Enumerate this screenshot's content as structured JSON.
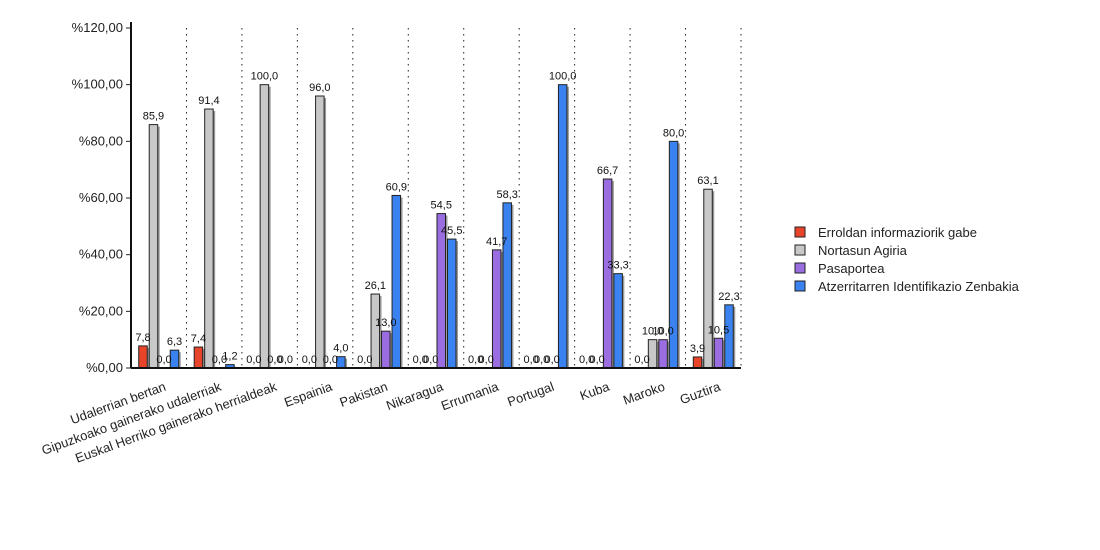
{
  "chart_data": {
    "type": "bar",
    "categories": [
      "Udalerrian bertan",
      "Gipuzkoako gainerako udalerriak",
      "Euskal Herriko gainerako herrialdeak",
      "Espainia",
      "Pakistan",
      "Nikaragua",
      "Errumania",
      "Portugal",
      "Kuba",
      "Maroko",
      "Guztira"
    ],
    "series": [
      {
        "name": "Erroldan informaziorik gabe",
        "color": "#e8442a",
        "values": [
          7.8,
          7.4,
          0.0,
          0.0,
          0.0,
          0.0,
          0.0,
          0.0,
          0.0,
          0.0,
          3.9
        ],
        "labels": [
          "7,8",
          "7,4",
          "0,0",
          "0,0",
          "0,0",
          "0,0",
          "0,0",
          "0,0",
          "0,0",
          "0,0",
          "3,9"
        ]
      },
      {
        "name": "Nortasun Agiria",
        "color": "#c8c8c8",
        "values": [
          85.9,
          91.4,
          100.0,
          96.0,
          26.1,
          0.0,
          0.0,
          0.0,
          0.0,
          10.0,
          63.1
        ],
        "labels": [
          "85,9",
          "91,4",
          "100,0",
          "96,0",
          "26,1",
          "0,0",
          "0,0",
          "0,0",
          "0,0",
          "10,0",
          "63,1"
        ]
      },
      {
        "name": "Pasaportea",
        "color": "#9a6ee0",
        "values": [
          0.0,
          0.0,
          0.0,
          0.0,
          13.0,
          54.5,
          41.7,
          0.0,
          66.7,
          10.0,
          10.5
        ],
        "labels": [
          "0,0",
          "0,0",
          "0,0",
          "0,0",
          "13,0",
          "54,5",
          "41,7",
          "0,0",
          "66,7",
          "10,0",
          "10,5"
        ]
      },
      {
        "name": "Atzerritarren Identifikazio Zenbakia",
        "color": "#3a82f0",
        "values": [
          6.3,
          1.2,
          0.0,
          4.0,
          60.9,
          45.5,
          58.3,
          100.0,
          33.3,
          80.0,
          22.3
        ],
        "labels": [
          "6,3",
          "1,2",
          "0,0",
          "4,0",
          "60,9",
          "45,5",
          "58,3",
          "100,0",
          "33,3",
          "80,0",
          "22,3"
        ]
      }
    ],
    "yticks": [
      0,
      20,
      40,
      60,
      80,
      100,
      120
    ],
    "ytick_labels": [
      "%0,00",
      "%20,00",
      "%40,00",
      "%60,00",
      "%80,00",
      "%100,00",
      "%120,00"
    ],
    "ylim": [
      0,
      120
    ],
    "grid": "vertical-dotted",
    "legend_position": "right",
    "title": "",
    "xlabel": "",
    "ylabel": ""
  }
}
